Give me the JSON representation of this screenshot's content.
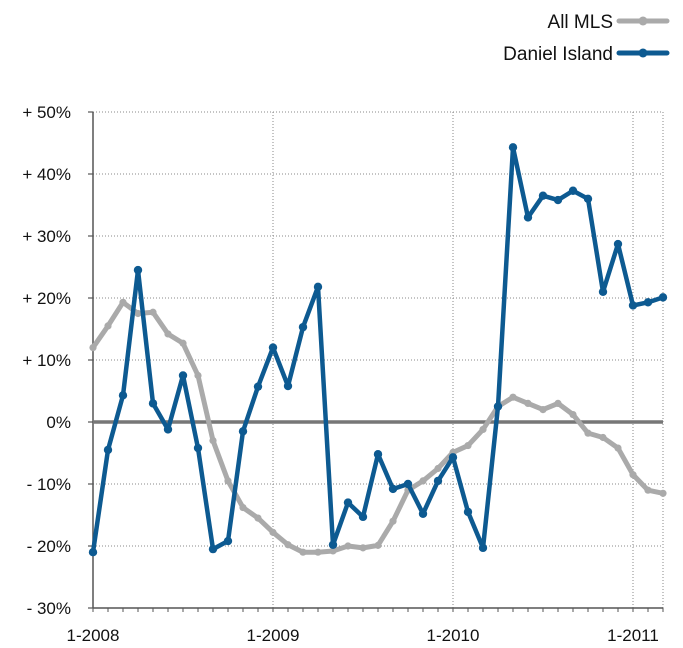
{
  "chart_data": {
    "type": "line",
    "title": "",
    "xlabel": "",
    "ylabel": "",
    "ylim": [
      -30,
      50
    ],
    "y_ticks": [
      50,
      40,
      30,
      20,
      10,
      0,
      -10,
      -20,
      -30
    ],
    "y_tick_labels": [
      "+ 50%",
      "+ 40%",
      "+ 30%",
      "+ 20%",
      "+ 10%",
      "0%",
      "- 10%",
      "- 20%",
      "- 30%"
    ],
    "x_tick_labels": [
      "1-2008",
      "1-2009",
      "1-2010",
      "1-2011"
    ],
    "x_range_months": [
      0,
      38
    ],
    "grid": "dotted",
    "zero_line": true,
    "legend_position": "top-right",
    "series": [
      {
        "name": "All MLS",
        "color": "#aaaaaa",
        "values": [
          12,
          15.5,
          19.3,
          17.5,
          17.7,
          14.2,
          12.7,
          7.5,
          -3,
          -9.5,
          -13.8,
          -15.5,
          -17.8,
          -19.8,
          -21,
          -21,
          -20.8,
          -20,
          -20.3,
          -19.9,
          -16,
          -11,
          -9.5,
          -7.5,
          -4.9,
          -3.8,
          -1.2,
          2.5,
          4,
          3,
          2,
          3,
          1.2,
          -1.8,
          -2.5,
          -4.2,
          -8.5,
          -11,
          -11.5
        ]
      },
      {
        "name": "Daniel Island",
        "color": "#0d5a91",
        "values": [
          -21,
          -4.5,
          4.3,
          24.5,
          3,
          -1.2,
          7.5,
          -4.2,
          -20.5,
          -19.2,
          -1.5,
          5.7,
          12,
          5.8,
          15.3,
          21.8,
          -19.8,
          -13,
          -15.3,
          -5.2,
          -10.8,
          -10,
          -14.8,
          -9.5,
          -5.7,
          -14.5,
          -20.3,
          2.5,
          44.3,
          33,
          36.5,
          35.8,
          37.3,
          36,
          21,
          28.7,
          18.8,
          19.3,
          20.1
        ]
      }
    ]
  }
}
